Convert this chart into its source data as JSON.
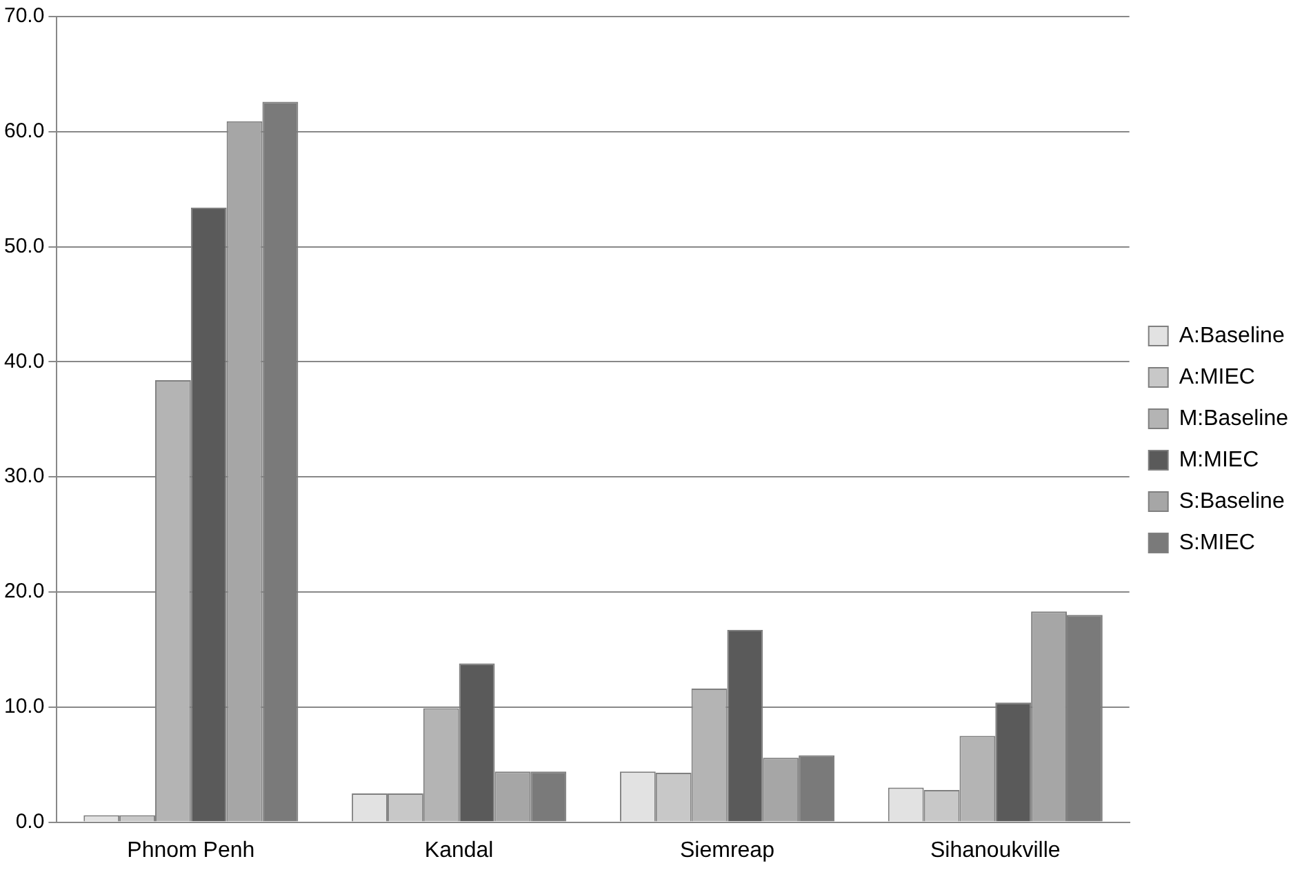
{
  "chart_data": {
    "type": "bar",
    "categories": [
      "Phnom Penh",
      "Kandal",
      "Siemreap",
      "Sihanoukville"
    ],
    "series": [
      {
        "name": "A:Baseline",
        "color": "#e2e2e2",
        "values": [
          0.6,
          2.5,
          4.4,
          3.0
        ]
      },
      {
        "name": "A:MIEC",
        "color": "#c8c8c8",
        "values": [
          0.6,
          2.5,
          4.3,
          2.8
        ]
      },
      {
        "name": "M:Baseline",
        "color": "#b4b4b4",
        "values": [
          38.4,
          9.9,
          11.6,
          7.5
        ]
      },
      {
        "name": "M:MIEC",
        "color": "#5a5a5a",
        "values": [
          53.4,
          13.8,
          16.7,
          10.4
        ]
      },
      {
        "name": "S:Baseline",
        "color": "#a6a6a6",
        "values": [
          60.9,
          4.4,
          5.6,
          18.3
        ]
      },
      {
        "name": "S:MIEC",
        "color": "#7a7a7a",
        "values": [
          62.6,
          4.4,
          5.8,
          18.0
        ]
      }
    ],
    "ylim": [
      0,
      70
    ],
    "yticks": [
      {
        "value": 0,
        "label": "0.0"
      },
      {
        "value": 10,
        "label": "10.0"
      },
      {
        "value": 20,
        "label": "20.0"
      },
      {
        "value": 30,
        "label": "30.0"
      },
      {
        "value": 40,
        "label": "40.0"
      },
      {
        "value": 50,
        "label": "50.0"
      },
      {
        "value": 60,
        "label": "60.0"
      },
      {
        "value": 70,
        "label": "70.0"
      }
    ],
    "grid": "y",
    "legend": "right"
  }
}
